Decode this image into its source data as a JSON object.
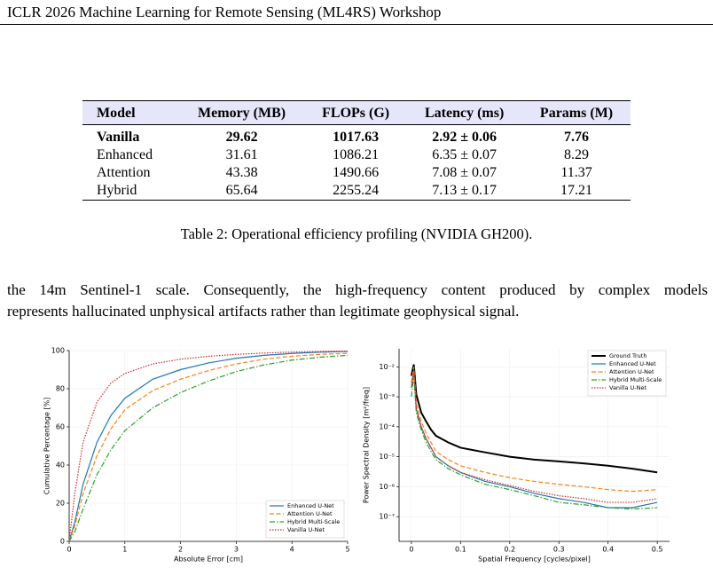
{
  "header": {
    "title": "ICLR 2026 Machine Learning for Remote Sensing (ML4RS) Workshop"
  },
  "table": {
    "columns": [
      "Model",
      "Memory (MB)",
      "FLOPs (G)",
      "Latency (ms)",
      "Params (M)"
    ],
    "rows": [
      [
        "Vanilla",
        "29.62",
        "1017.63",
        "2.92 ± 0.06",
        "7.76"
      ],
      [
        "Enhanced",
        "31.61",
        "1086.21",
        "6.35 ± 0.07",
        "8.29"
      ],
      [
        "Attention",
        "43.38",
        "1490.66",
        "7.08 ± 0.07",
        "11.37"
      ],
      [
        "Hybrid",
        "65.64",
        "2255.24",
        "7.13 ± 0.17",
        "17.21"
      ]
    ],
    "bold_row": 0,
    "caption": "Table 2: Operational efficiency profiling (NVIDIA GH200)."
  },
  "paragraph": {
    "lines": [
      "the 14m Sentinel-1 scale. Consequently, the high-frequency content produced by complex models",
      "represents hallucinated unphysical artifacts rather than legitimate geophysical signal."
    ]
  },
  "chart_data": [
    {
      "type": "line",
      "xlabel": "Absolute Error [cm]",
      "ylabel": "Cumulative Percentage [%]",
      "x": [
        0,
        0.1,
        0.25,
        0.5,
        0.75,
        1,
        1.5,
        2,
        2.5,
        3,
        3.5,
        4,
        4.5,
        5
      ],
      "xlim": [
        0,
        5
      ],
      "ylim": [
        0,
        100
      ],
      "xticks": [
        0,
        1,
        2,
        3,
        4,
        5
      ],
      "yticks": [
        0,
        20,
        40,
        60,
        80,
        100
      ],
      "grid": true,
      "legend": "lower right",
      "log_y": false,
      "series": [
        {
          "name": "Enhanced U-Net",
          "color": "#1f77b4",
          "dash": "solid",
          "values": [
            0,
            10,
            30,
            52,
            66,
            75,
            85,
            90,
            93.5,
            96,
            97.5,
            98.5,
            99.2,
            99.5
          ]
        },
        {
          "name": "Attention U-Net",
          "color": "#ff7f0e",
          "dash": "dashed",
          "values": [
            0,
            8,
            25,
            45,
            59,
            69,
            79,
            85,
            89.5,
            93,
            95.5,
            97,
            98,
            98.5
          ]
        },
        {
          "name": "Hybrid Multi-Scale",
          "color": "#2ca02c",
          "dash": "dashdot",
          "values": [
            0,
            5,
            17,
            35,
            48,
            58,
            70,
            78,
            84,
            89,
            92.5,
            95,
            96.5,
            97.5
          ]
        },
        {
          "name": "Vanilla U-Net",
          "color": "#d62728",
          "dash": "dotted",
          "values": [
            0,
            25,
            52,
            73,
            83,
            88,
            93,
            95.5,
            97,
            98,
            98.7,
            99.2,
            99.5,
            99.7
          ]
        }
      ]
    },
    {
      "type": "line",
      "xlabel": "Spatial Frequency [cycles/pixel]",
      "ylabel": "Power Spectral Density [m²/freq]",
      "x": [
        0,
        0.005,
        0.01,
        0.015,
        0.02,
        0.03,
        0.04,
        0.05,
        0.075,
        0.1,
        0.15,
        0.2,
        0.25,
        0.3,
        0.35,
        0.4,
        0.45,
        0.5
      ],
      "xlim": [
        -0.025,
        0.525
      ],
      "ylim": [
        1.5e-08,
        0.04
      ],
      "xticks": [
        0,
        0.1,
        0.2,
        0.3,
        0.4,
        0.5
      ],
      "yticks": [
        {
          "value": 1e-07,
          "label": "10⁻⁷"
        },
        {
          "value": 1e-06,
          "label": "10⁻⁶"
        },
        {
          "value": 1e-05,
          "label": "10⁻⁵"
        },
        {
          "value": 0.0001,
          "label": "10⁻⁴"
        },
        {
          "value": 0.001,
          "label": "10⁻³"
        },
        {
          "value": 0.01,
          "label": "10⁻²"
        }
      ],
      "grid": true,
      "legend": "upper right",
      "log_y": true,
      "series": [
        {
          "name": "Ground Truth",
          "color": "#000000",
          "dash": "solid",
          "width": 2,
          "values": [
            0.005,
            0.012,
            0.0012,
            0.0006,
            0.0003,
            0.00015,
            8e-05,
            5e-05,
            3e-05,
            2e-05,
            1.4e-05,
            1e-05,
            8e-06,
            7e-06,
            6e-06,
            5e-06,
            4e-06,
            3e-06
          ]
        },
        {
          "name": "Enhanced U-Net",
          "color": "#1f77b4",
          "dash": "solid",
          "values": [
            0.002,
            0.008,
            0.0004,
            0.0002,
            0.0001,
            4e-05,
            2e-05,
            1e-05,
            5e-06,
            3e-06,
            1.5e-06,
            1e-06,
            6e-07,
            4e-07,
            3e-07,
            2e-07,
            2e-07,
            3e-07
          ]
        },
        {
          "name": "Attention U-Net",
          "color": "#ff7f0e",
          "dash": "dashed",
          "values": [
            0.003,
            0.01,
            0.0006,
            0.0003,
            0.00015,
            6e-05,
            3e-05,
            1.5e-05,
            8e-06,
            5e-06,
            3e-06,
            2e-06,
            1.5e-06,
            1.2e-06,
            1e-06,
            8e-07,
            7e-07,
            8e-07
          ]
        },
        {
          "name": "Hybrid Multi-Scale",
          "color": "#2ca02c",
          "dash": "dashdot",
          "values": [
            0.001,
            0.005,
            0.0003,
            0.00015,
            8e-05,
            3e-05,
            1.5e-05,
            8e-06,
            4e-06,
            2.5e-06,
            1.2e-06,
            8e-07,
            5e-07,
            3e-07,
            2.5e-07,
            2e-07,
            1.8e-07,
            2e-07
          ]
        },
        {
          "name": "Vanilla U-Net",
          "color": "#d62728",
          "dash": "dotted",
          "values": [
            0.002,
            0.007,
            0.0004,
            0.0002,
            0.0001,
            4e-05,
            2e-05,
            1e-05,
            5e-06,
            3e-06,
            1.7e-06,
            1.1e-06,
            7e-07,
            5e-07,
            4e-07,
            3e-07,
            3e-07,
            4e-07
          ]
        }
      ]
    }
  ]
}
